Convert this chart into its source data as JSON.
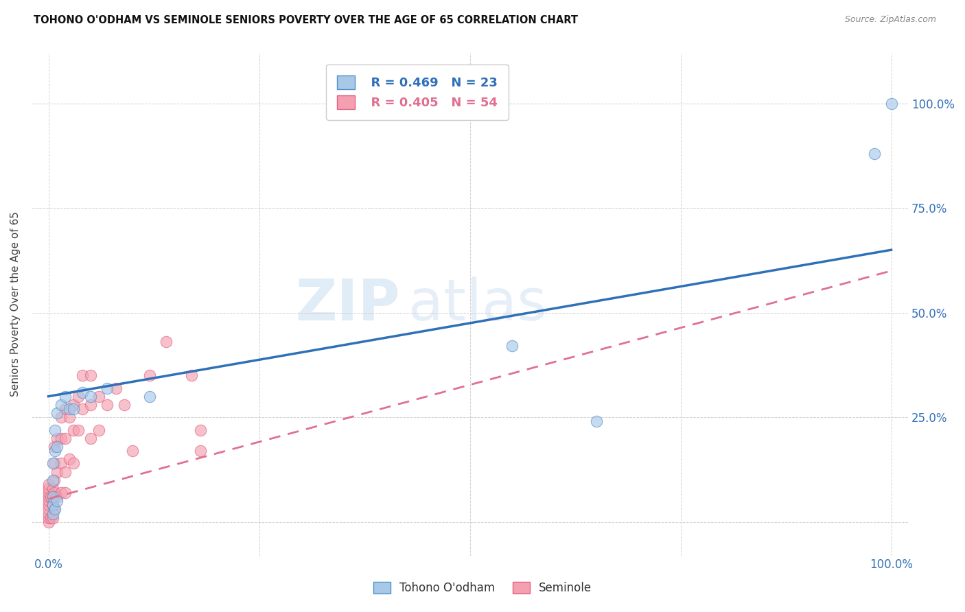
{
  "title": "TOHONO O'ODHAM VS SEMINOLE SENIORS POVERTY OVER THE AGE OF 65 CORRELATION CHART",
  "source": "Source: ZipAtlas.com",
  "ylabel": "Seniors Poverty Over the Age of 65",
  "xlim": [
    -0.02,
    1.02
  ],
  "ylim": [
    -0.08,
    1.12
  ],
  "tohono_color": "#a8c8e8",
  "seminole_color": "#f4a0b0",
  "tohono_edge_color": "#5090c8",
  "seminole_edge_color": "#e06080",
  "tohono_line_color": "#3070b8",
  "seminole_line_color": "#e07090",
  "legend_r_tohono": "R = 0.469",
  "legend_n_tohono": "N = 23",
  "legend_r_seminole": "R = 0.405",
  "legend_n_seminole": "N = 54",
  "watermark_zip": "ZIP",
  "watermark_atlas": "atlas",
  "blue_line_x0": 0.0,
  "blue_line_y0": 0.3,
  "blue_line_x1": 1.0,
  "blue_line_y1": 0.65,
  "pink_line_x0": 0.0,
  "pink_line_y0": 0.055,
  "pink_line_x1": 1.0,
  "pink_line_y1": 0.6,
  "tohono_x": [
    0.005,
    0.005,
    0.005,
    0.005,
    0.005,
    0.008,
    0.008,
    0.008,
    0.01,
    0.01,
    0.01,
    0.015,
    0.02,
    0.025,
    0.03,
    0.04,
    0.05,
    0.07,
    0.12,
    0.55,
    0.65,
    0.98,
    1.0
  ],
  "tohono_y": [
    0.02,
    0.04,
    0.06,
    0.1,
    0.14,
    0.03,
    0.17,
    0.22,
    0.05,
    0.18,
    0.26,
    0.28,
    0.3,
    0.27,
    0.27,
    0.31,
    0.3,
    0.32,
    0.3,
    0.42,
    0.24,
    0.88,
    1.0
  ],
  "seminole_x": [
    0.0,
    0.0,
    0.0,
    0.0,
    0.0,
    0.0,
    0.0,
    0.0,
    0.0,
    0.0,
    0.003,
    0.003,
    0.005,
    0.005,
    0.005,
    0.007,
    0.007,
    0.007,
    0.007,
    0.007,
    0.01,
    0.01,
    0.01,
    0.015,
    0.015,
    0.015,
    0.015,
    0.02,
    0.02,
    0.02,
    0.02,
    0.025,
    0.025,
    0.03,
    0.03,
    0.03,
    0.035,
    0.035,
    0.04,
    0.04,
    0.05,
    0.05,
    0.05,
    0.06,
    0.06,
    0.07,
    0.08,
    0.09,
    0.1,
    0.12,
    0.14,
    0.17,
    0.18,
    0.18
  ],
  "seminole_y": [
    0.0,
    0.01,
    0.02,
    0.03,
    0.04,
    0.05,
    0.06,
    0.07,
    0.08,
    0.09,
    0.01,
    0.06,
    0.01,
    0.04,
    0.08,
    0.03,
    0.07,
    0.1,
    0.14,
    0.18,
    0.06,
    0.12,
    0.2,
    0.07,
    0.14,
    0.2,
    0.25,
    0.07,
    0.12,
    0.2,
    0.27,
    0.15,
    0.25,
    0.14,
    0.22,
    0.28,
    0.22,
    0.3,
    0.27,
    0.35,
    0.2,
    0.28,
    0.35,
    0.22,
    0.3,
    0.28,
    0.32,
    0.28,
    0.17,
    0.35,
    0.43,
    0.35,
    0.22,
    0.17
  ]
}
